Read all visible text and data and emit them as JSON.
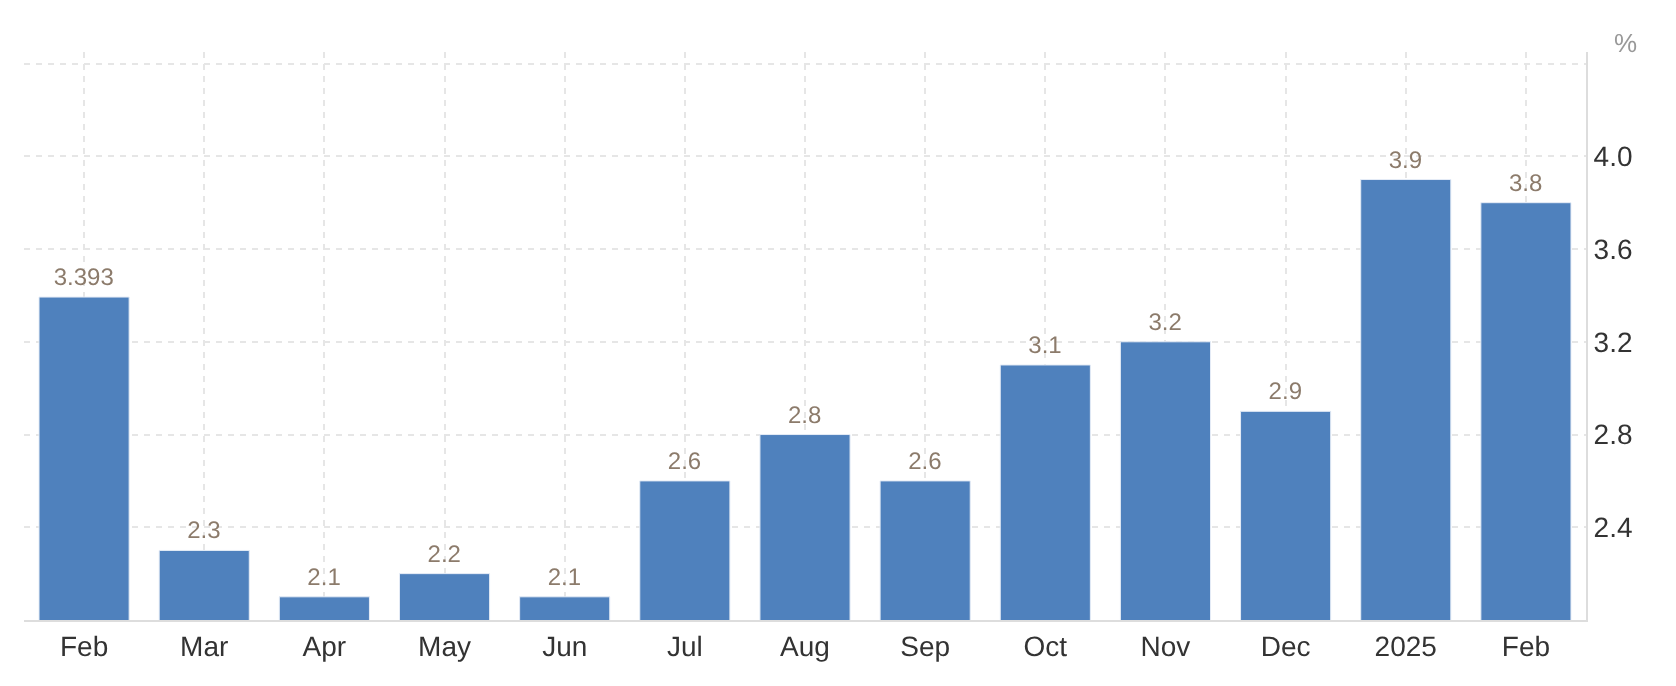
{
  "chart_data": {
    "type": "bar",
    "ylabel": "%",
    "categories": [
      "Feb",
      "Mar",
      "Apr",
      "May",
      "Jun",
      "Jul",
      "Aug",
      "Sep",
      "Oct",
      "Nov",
      "Dec",
      "2025",
      "Feb"
    ],
    "values": [
      3.393,
      2.3,
      2.1,
      2.2,
      2.1,
      2.6,
      2.8,
      2.6,
      3.1,
      3.2,
      2.9,
      3.9,
      3.8
    ],
    "color": "#4f81bd",
    "ylim": [
      2.0,
      4.45
    ],
    "yticks": [
      {
        "value": 2.4,
        "label": "2.4"
      },
      {
        "value": 2.8,
        "label": "2.8"
      },
      {
        "value": 3.2,
        "label": "3.2"
      },
      {
        "value": 3.6,
        "label": "3.6"
      },
      {
        "value": 4.0,
        "label": "4.0"
      },
      {
        "value": 4.4,
        "label": null
      }
    ],
    "grid": true,
    "data_labels": true,
    "legend": false
  }
}
